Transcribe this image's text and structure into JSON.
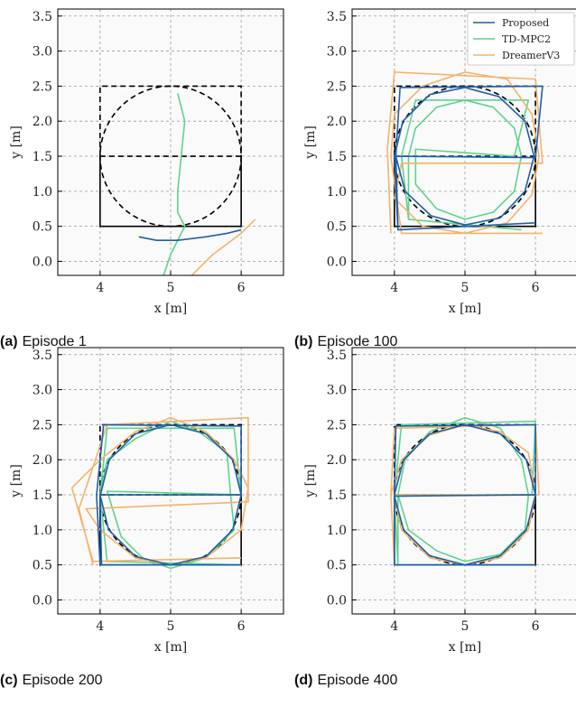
{
  "chart_data": [
    {
      "type": "line",
      "xlabel": "x [m]",
      "ylabel": "y [m]",
      "caption": {
        "label": "(a)",
        "text": "Episode 1"
      },
      "xlim": [
        3.4,
        6.6
      ],
      "ylim": [
        -0.2,
        3.6
      ],
      "xticks": [
        4,
        5,
        6
      ],
      "yticks": [
        {
          "value": 0,
          "label": "0.0"
        },
        0.5,
        {
          "value": 1,
          "label": "1.0"
        },
        1.5,
        {
          "value": 2,
          "label": "2.0"
        },
        2.5,
        {
          "value": 3,
          "label": "3.0"
        },
        3.5
      ],
      "grid": true,
      "reference": [
        {
          "x": [
            4,
            4,
            6,
            6
          ],
          "y": [
            1.5,
            2.5,
            2.5,
            1.5
          ],
          "dash": true
        },
        {
          "x": [
            4,
            6
          ],
          "y": [
            1.5,
            1.5
          ],
          "dash": true
        },
        {
          "x": [
            4,
            4,
            6,
            6
          ],
          "y": [
            1.5,
            0.5,
            0.5,
            1.5
          ],
          "dash": false
        },
        {
          "cx": 5,
          "cy": 1.5,
          "r": 1
        }
      ],
      "series": [
        {
          "name": "Proposed",
          "color": "#1f5fa8",
          "x": [
            4.55,
            4.8,
            5.1,
            5.5,
            5.8,
            6.0
          ],
          "y": [
            0.35,
            0.3,
            0.3,
            0.35,
            0.4,
            0.45
          ]
        },
        {
          "name": "TD-MPC2",
          "color": "#5fd38d",
          "x": [
            5.1,
            5.2,
            5.15,
            5.1,
            5.1,
            5.2,
            5.0,
            4.9
          ],
          "y": [
            2.4,
            2.0,
            1.5,
            1.0,
            0.7,
            0.5,
            0.1,
            -0.2
          ]
        },
        {
          "name": "DreamerV3",
          "color": "#f5b26b",
          "x": [
            5.3,
            5.6,
            6.0,
            6.2
          ],
          "y": [
            -0.2,
            0.1,
            0.4,
            0.6
          ]
        }
      ]
    },
    {
      "type": "line",
      "xlabel": "x [m]",
      "ylabel": "y [m]",
      "caption": {
        "label": "(b)",
        "text": "Episode 100"
      },
      "legend": "upper right",
      "xlim": [
        3.4,
        6.6
      ],
      "ylim": [
        -0.2,
        3.6
      ],
      "xticks": [
        4,
        5,
        6
      ],
      "yticks": [
        {
          "value": 0,
          "label": "0.0"
        },
        0.5,
        {
          "value": 1,
          "label": "1.0"
        },
        1.5,
        {
          "value": 2,
          "label": "2.0"
        },
        2.5,
        {
          "value": 3,
          "label": "3.0"
        },
        3.5
      ],
      "grid": true,
      "reference": [
        {
          "x": [
            4,
            4,
            6,
            6
          ],
          "y": [
            1.5,
            2.5,
            2.5,
            1.5
          ],
          "dash": true
        },
        {
          "x": [
            4,
            6
          ],
          "y": [
            1.5,
            1.5
          ],
          "dash": true
        },
        {
          "x": [
            4,
            4,
            6,
            6
          ],
          "y": [
            1.5,
            0.5,
            0.5,
            1.5
          ],
          "dash": false
        },
        {
          "cx": 5,
          "cy": 1.5,
          "r": 1
        }
      ],
      "series": [
        {
          "name": "Proposed",
          "color": "#1f5fa8",
          "x": [
            4.05,
            4.02,
            4.08,
            6.1,
            6.0,
            4.02,
            4.15,
            4.52,
            5.0,
            5.5,
            5.85,
            5.98,
            5.85,
            5.48,
            5.0,
            4.5,
            4.12,
            4.0,
            4.05,
            6.0
          ],
          "y": [
            0.5,
            1.5,
            2.48,
            2.5,
            1.48,
            1.5,
            1.0,
            0.65,
            0.52,
            0.62,
            1.0,
            1.5,
            2.0,
            2.35,
            2.48,
            2.38,
            2.0,
            1.5,
            0.45,
            0.55
          ]
        },
        {
          "name": "TD-MPC2",
          "color": "#5fd38d",
          "x": [
            4.2,
            4.1,
            4.3,
            5.9,
            5.7,
            4.3,
            4.3,
            4.6,
            5.0,
            5.4,
            5.7,
            5.8,
            5.7,
            5.4,
            5.0,
            4.6,
            4.3,
            4.2,
            4.2,
            5.8
          ],
          "y": [
            0.6,
            1.5,
            2.3,
            2.3,
            1.5,
            1.6,
            1.1,
            0.75,
            0.6,
            0.7,
            1.0,
            1.5,
            1.9,
            2.2,
            2.3,
            2.2,
            1.9,
            1.5,
            0.6,
            0.45
          ]
        },
        {
          "name": "DreamerV3",
          "color": "#f5b26b",
          "x": [
            3.95,
            3.9,
            4.0,
            6.0,
            6.1,
            4.1,
            4.0,
            4.4,
            5.0,
            5.6,
            5.95,
            6.05,
            5.95,
            5.6,
            5.0,
            4.4,
            4.0,
            3.95,
            4.1,
            6.1
          ],
          "y": [
            0.4,
            1.6,
            2.7,
            2.6,
            1.4,
            1.4,
            0.9,
            0.5,
            0.4,
            0.55,
            0.95,
            1.5,
            2.1,
            2.6,
            2.7,
            2.5,
            2.1,
            1.5,
            0.4,
            0.4
          ]
        }
      ]
    },
    {
      "type": "line",
      "xlabel": "x [m]",
      "ylabel": "y [m]",
      "caption": {
        "label": "(c)",
        "text": "Episode 200"
      },
      "xlim": [
        3.4,
        6.6
      ],
      "ylim": [
        -0.2,
        3.6
      ],
      "xticks": [
        4,
        5,
        6
      ],
      "yticks": [
        {
          "value": 0,
          "label": "0.0"
        },
        0.5,
        {
          "value": 1,
          "label": "1.0"
        },
        1.5,
        {
          "value": 2,
          "label": "2.0"
        },
        2.5,
        {
          "value": 3,
          "label": "3.0"
        },
        3.5
      ],
      "grid": true,
      "reference": [
        {
          "x": [
            4,
            4,
            6,
            6
          ],
          "y": [
            1.5,
            2.5,
            2.5,
            1.5
          ],
          "dash": true
        },
        {
          "x": [
            4,
            6
          ],
          "y": [
            1.5,
            1.5
          ],
          "dash": true
        },
        {
          "x": [
            4,
            4,
            6,
            6
          ],
          "y": [
            1.5,
            0.5,
            0.5,
            1.5
          ],
          "dash": false
        },
        {
          "cx": 5,
          "cy": 1.5,
          "r": 1
        }
      ],
      "series": [
        {
          "name": "Proposed",
          "color": "#1f5fa8",
          "x": [
            4.0,
            3.95,
            4.05,
            6.0,
            6.0,
            4.0,
            4.12,
            4.5,
            5.0,
            5.5,
            5.88,
            6.0,
            5.88,
            5.5,
            5.0,
            4.5,
            4.13,
            4.0,
            4.02,
            6.0
          ],
          "y": [
            0.5,
            1.5,
            2.5,
            2.48,
            1.5,
            1.5,
            1.0,
            0.62,
            0.5,
            0.62,
            1.0,
            1.5,
            2.0,
            2.37,
            2.5,
            2.37,
            2.0,
            1.48,
            0.5,
            0.5
          ]
        },
        {
          "name": "TD-MPC2",
          "color": "#5fd38d",
          "x": [
            4.1,
            4.0,
            4.1,
            5.9,
            6.0,
            4.1,
            4.3,
            4.6,
            5.0,
            5.5,
            5.9,
            5.85,
            5.8,
            5.4,
            5.0,
            4.5,
            4.1,
            4.0,
            4.1,
            6.0
          ],
          "y": [
            0.55,
            1.5,
            2.45,
            2.45,
            1.5,
            1.55,
            0.9,
            0.6,
            0.45,
            0.6,
            1.0,
            1.5,
            2.1,
            2.4,
            2.55,
            2.3,
            2.0,
            1.5,
            0.55,
            0.5
          ]
        },
        {
          "name": "DreamerV3",
          "color": "#f5b26b",
          "x": [
            3.9,
            3.7,
            4.1,
            6.1,
            6.1,
            3.8,
            4.0,
            4.5,
            5.0,
            5.5,
            6.0,
            6.1,
            5.9,
            5.5,
            5.0,
            4.5,
            4.0,
            3.6,
            3.9,
            6.0
          ],
          "y": [
            0.5,
            1.3,
            2.5,
            2.6,
            1.4,
            1.3,
            1.0,
            0.6,
            0.5,
            0.6,
            1.0,
            1.6,
            2.0,
            2.4,
            2.6,
            2.4,
            2.0,
            1.6,
            0.55,
            0.6
          ]
        }
      ]
    },
    {
      "type": "line",
      "xlabel": "x [m]",
      "ylabel": "y [m]",
      "caption": {
        "label": "(d)",
        "text": "Episode 400"
      },
      "xlim": [
        3.4,
        6.6
      ],
      "ylim": [
        -0.2,
        3.6
      ],
      "xticks": [
        4,
        5,
        6
      ],
      "yticks": [
        {
          "value": 0,
          "label": "0.0"
        },
        0.5,
        {
          "value": 1,
          "label": "1.0"
        },
        1.5,
        {
          "value": 2,
          "label": "2.0"
        },
        2.5,
        {
          "value": 3,
          "label": "3.0"
        },
        3.5
      ],
      "grid": true,
      "reference": [
        {
          "x": [
            4,
            4,
            6,
            6
          ],
          "y": [
            1.5,
            2.5,
            2.5,
            1.5
          ],
          "dash": true
        },
        {
          "x": [
            4,
            6
          ],
          "y": [
            1.5,
            1.5
          ],
          "dash": true
        },
        {
          "x": [
            4,
            4,
            6,
            6
          ],
          "y": [
            1.5,
            0.5,
            0.5,
            1.5
          ],
          "dash": false
        },
        {
          "cx": 5,
          "cy": 1.5,
          "r": 1
        }
      ],
      "series": [
        {
          "name": "Proposed",
          "color": "#1f5fa8",
          "x": [
            4.0,
            4.0,
            4.02,
            6.0,
            6.0,
            4.0,
            4.13,
            4.5,
            5.0,
            5.5,
            5.87,
            6.0,
            5.87,
            5.5,
            5.0,
            4.5,
            4.13,
            4.0,
            4.0,
            6.0
          ],
          "y": [
            0.5,
            1.5,
            2.48,
            2.5,
            1.5,
            1.48,
            1.0,
            0.63,
            0.5,
            0.63,
            1.0,
            1.5,
            2.0,
            2.37,
            2.5,
            2.37,
            2.0,
            1.5,
            0.5,
            0.5
          ]
        },
        {
          "name": "TD-MPC2",
          "color": "#5fd38d",
          "x": [
            4.05,
            4.0,
            4.1,
            6.0,
            5.95,
            4.05,
            4.2,
            4.6,
            5.0,
            5.5,
            5.85,
            5.9,
            5.8,
            5.5,
            5.0,
            4.5,
            4.15,
            4.05,
            4.05,
            5.95
          ],
          "y": [
            0.5,
            1.5,
            2.5,
            2.55,
            1.5,
            1.5,
            1.0,
            0.7,
            0.55,
            0.65,
            1.0,
            1.5,
            2.0,
            2.45,
            2.6,
            2.4,
            2.0,
            1.5,
            0.5,
            0.5
          ]
        },
        {
          "name": "DreamerV3",
          "color": "#f5b26b",
          "x": [
            4.0,
            3.95,
            4.0,
            6.0,
            6.05,
            4.0,
            4.1,
            4.5,
            5.0,
            5.5,
            5.9,
            6.0,
            5.9,
            5.5,
            5.0,
            4.5,
            4.1,
            3.95,
            4.0,
            6.0
          ],
          "y": [
            0.5,
            1.5,
            2.45,
            2.5,
            1.5,
            1.5,
            1.0,
            0.6,
            0.5,
            0.6,
            1.0,
            1.5,
            2.1,
            2.4,
            2.5,
            2.35,
            2.0,
            1.5,
            0.5,
            0.5
          ]
        }
      ]
    }
  ]
}
